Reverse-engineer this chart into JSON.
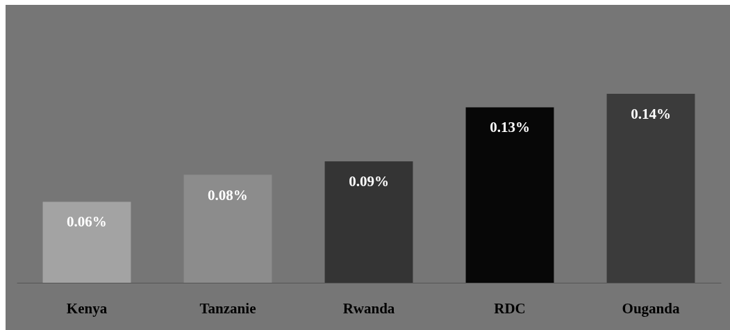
{
  "chart_data": {
    "type": "bar",
    "categories": [
      "Kenya",
      "Tanzanie",
      "Rwanda",
      "RDC",
      "Ouganda"
    ],
    "values": [
      0.06,
      0.08,
      0.09,
      0.13,
      0.14
    ],
    "colors": [
      "#a3a3a3",
      "#8c8c8c",
      "#343434",
      "#070707",
      "#3b3b3b"
    ],
    "value_labels": [
      "0.06%",
      "0.08%",
      "0.09%",
      "0.13%",
      "0.14%"
    ]
  }
}
